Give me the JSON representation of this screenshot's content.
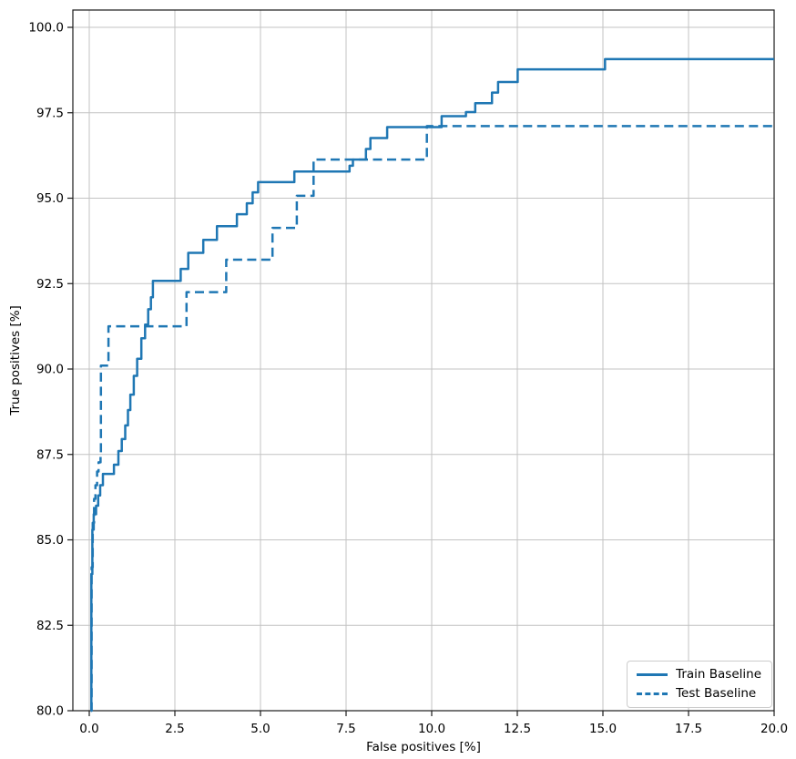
{
  "chart_data": {
    "type": "line",
    "subtype": "step",
    "title": "",
    "xlabel": "False positives [%]",
    "ylabel": "True positives [%]",
    "xlim": [
      -0.5,
      20
    ],
    "ylim": [
      80,
      100.5
    ],
    "grid": true,
    "legend_position": "lower right",
    "line_color": "#1f77b4",
    "grid_color": "#c3c3c3",
    "spine_color": "#1a1a1a",
    "xticks": [
      0,
      2.5,
      5,
      7.5,
      10,
      12.5,
      15,
      17.5,
      20
    ],
    "xtick_labels": [
      "0.0",
      "2.5",
      "5.0",
      "7.5",
      "10.0",
      "12.5",
      "15.0",
      "17.5",
      "20.0"
    ],
    "yticks": [
      80,
      82.5,
      85,
      87.5,
      90,
      92.5,
      95,
      97.5,
      100
    ],
    "ytick_labels": [
      "80.0",
      "82.5",
      "85.0",
      "87.5",
      "90.0",
      "92.5",
      "95.0",
      "97.5",
      "100.0"
    ],
    "legend": {
      "entries": [
        {
          "label": "Train Baseline",
          "style": "solid"
        },
        {
          "label": "Test Baseline",
          "style": "dashed"
        }
      ]
    },
    "series": [
      {
        "name": "Train Baseline",
        "style": "solid",
        "step_points": [
          [
            0.04,
            80.0
          ],
          [
            0.06,
            84.0
          ],
          [
            0.09,
            85.3
          ],
          [
            0.13,
            85.75
          ],
          [
            0.2,
            86.0
          ],
          [
            0.26,
            86.3
          ],
          [
            0.32,
            86.6
          ],
          [
            0.4,
            86.93
          ],
          [
            0.72,
            87.2
          ],
          [
            0.85,
            87.6
          ],
          [
            0.95,
            87.95
          ],
          [
            1.05,
            88.35
          ],
          [
            1.13,
            88.8
          ],
          [
            1.2,
            89.25
          ],
          [
            1.3,
            89.8
          ],
          [
            1.4,
            90.3
          ],
          [
            1.52,
            90.9
          ],
          [
            1.63,
            91.3
          ],
          [
            1.72,
            91.75
          ],
          [
            1.8,
            92.1
          ],
          [
            1.86,
            92.58
          ],
          [
            2.67,
            92.93
          ],
          [
            2.89,
            93.4
          ],
          [
            3.33,
            93.78
          ],
          [
            3.73,
            94.18
          ],
          [
            4.31,
            94.53
          ],
          [
            4.6,
            94.85
          ],
          [
            4.77,
            95.17
          ],
          [
            4.93,
            95.47
          ],
          [
            5.99,
            95.78
          ],
          [
            7.6,
            95.95
          ],
          [
            7.7,
            96.13
          ],
          [
            8.08,
            96.44
          ],
          [
            8.21,
            96.76
          ],
          [
            8.7,
            97.08
          ],
          [
            10.29,
            97.4
          ],
          [
            11.0,
            97.52
          ],
          [
            11.27,
            97.78
          ],
          [
            11.76,
            98.09
          ],
          [
            11.94,
            98.4
          ],
          [
            12.51,
            98.77
          ],
          [
            15.06,
            99.07
          ],
          [
            20.0,
            99.07
          ]
        ]
      },
      {
        "name": "Test Baseline",
        "style": "dashed",
        "step_points": [
          [
            0.05,
            80.0
          ],
          [
            0.07,
            84.2
          ],
          [
            0.1,
            85.5
          ],
          [
            0.14,
            86.2
          ],
          [
            0.18,
            86.6
          ],
          [
            0.23,
            87.0
          ],
          [
            0.27,
            87.27
          ],
          [
            0.33,
            87.45
          ],
          [
            0.34,
            90.1
          ],
          [
            0.56,
            91.25
          ],
          [
            2.84,
            92.25
          ],
          [
            4.0,
            93.2
          ],
          [
            5.35,
            94.13
          ],
          [
            6.06,
            95.07
          ],
          [
            6.55,
            96.13
          ],
          [
            9.86,
            97.11
          ],
          [
            20.0,
            97.11
          ]
        ]
      }
    ]
  }
}
